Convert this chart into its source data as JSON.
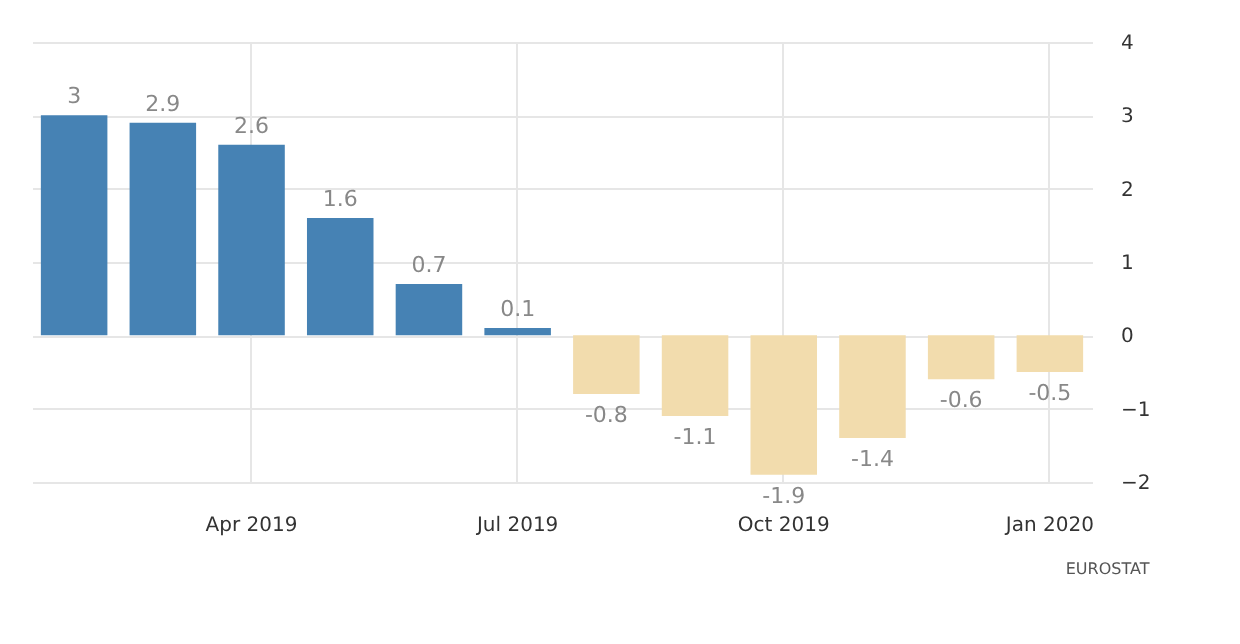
{
  "chart_data": {
    "type": "bar",
    "categories": [
      null,
      null,
      "Apr 2019",
      null,
      null,
      "Jul 2019",
      null,
      null,
      "Oct 2019",
      null,
      null,
      "Jan 2020"
    ],
    "values": [
      3,
      2.9,
      2.6,
      1.6,
      0.7,
      0.1,
      -0.8,
      -1.1,
      -1.9,
      -1.4,
      -0.6,
      -0.5
    ],
    "colors": [
      "#4682b4",
      "#4682b4",
      "#4682b4",
      "#4682b4",
      "#4682b4",
      "#4682b4",
      "#f2dcad",
      "#f2dcad",
      "#f2dcad",
      "#f2dcad",
      "#f2dcad",
      "#f2dcad"
    ],
    "ylim": [
      -2,
      4
    ],
    "yticks": [
      -2,
      -1,
      0,
      1,
      2,
      3,
      4
    ],
    "grid": true,
    "data_labels": true,
    "annotations": [
      "EUROSTAT"
    ]
  }
}
